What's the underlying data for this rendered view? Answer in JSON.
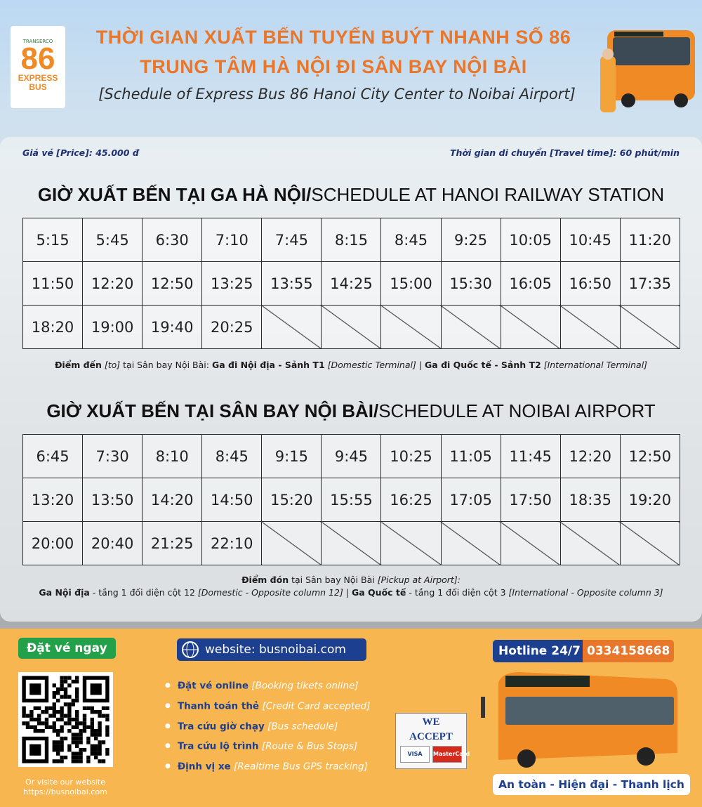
{
  "header": {
    "logo": {
      "brand": "TRANSERCO",
      "number": "86",
      "name_line1": "EXPRESS",
      "name_line2": "BUS"
    },
    "title_line1": "THỜI GIAN XUẤT BẾN TUYẾN BUÝT NHANH SỐ 86",
    "title_line2": "TRUNG TÂM HÀ NỘI ĐI SÂN BAY NỘI BÀI",
    "subtitle": "[Schedule of Express Bus 86 Hanoi City Center to Noibai Airport]"
  },
  "info": {
    "price": "Giá vé [Price]: 45.000 đ",
    "travel_time": "Thời gian di chuyển [Travel time]: 60 phút/min"
  },
  "schedules": [
    {
      "heading_vi": "GIỜ XUẤT BẾN TẠI GA HÀ NỘI/",
      "heading_en": "SCHEDULE AT HANOI RAILWAY STATION",
      "rows": [
        [
          "5:15",
          "5:45",
          "6:30",
          "7:10",
          "7:45",
          "8:15",
          "8:45",
          "9:25",
          "10:05",
          "10:45",
          "11:20"
        ],
        [
          "11:50",
          "12:20",
          "12:50",
          "13:25",
          "13:55",
          "14:25",
          "15:00",
          "15:30",
          "16:05",
          "16:50",
          "17:35"
        ],
        [
          "18:20",
          "19:00",
          "19:40",
          "20:25"
        ]
      ],
      "note": [
        [
          {
            "text": "Điểm đến",
            "style": "bold"
          },
          {
            "text": " [to]",
            "style": "italic"
          },
          {
            "text": " tại Sân bay Nội Bài: ",
            "style": "normal"
          },
          {
            "text": "Ga đi Nội địa - Sảnh T1",
            "style": "bold"
          },
          {
            "text": " [Domestic Terminal]",
            "style": "italic"
          },
          {
            "text": " | ",
            "style": "normal"
          },
          {
            "text": "Ga đi Quốc tế - Sảnh T2",
            "style": "bold"
          },
          {
            "text": " [International Terminal]",
            "style": "italic"
          }
        ]
      ]
    },
    {
      "heading_vi": "GIỜ XUẤT BẾN TẠI SÂN BAY NỘI BÀI/",
      "heading_en": "SCHEDULE AT NOIBAI AIRPORT",
      "rows": [
        [
          "6:45",
          "7:30",
          "8:10",
          "8:45",
          "9:15",
          "9:45",
          "10:25",
          "11:05",
          "11:45",
          "12:20",
          "12:50"
        ],
        [
          "13:20",
          "13:50",
          "14:20",
          "14:50",
          "15:20",
          "15:55",
          "16:25",
          "17:05",
          "17:50",
          "18:35",
          "19:20"
        ],
        [
          "20:00",
          "20:40",
          "21:25",
          "22:10"
        ]
      ],
      "note": [
        [
          {
            "text": "Điểm đón",
            "style": "bold"
          },
          {
            "text": " tại Sân bay Nội Bài ",
            "style": "normal"
          },
          {
            "text": "[Pickup at Airport]:",
            "style": "italic"
          }
        ],
        [
          {
            "text": "Ga Nội địa",
            "style": "bold"
          },
          {
            "text": " - tầng 1 đối diện cột 12 ",
            "style": "normal"
          },
          {
            "text": "[Domestic - Opposite column 12]",
            "style": "italic"
          },
          {
            "text": " | ",
            "style": "normal"
          },
          {
            "text": "Ga Quốc tế",
            "style": "bold"
          },
          {
            "text": " - tầng 1 đối diện cột 3 ",
            "style": "normal"
          },
          {
            "text": "[International - Opposite column 3]",
            "style": "italic"
          }
        ]
      ]
    }
  ],
  "footer": {
    "book_now": "Đặt vé ngay",
    "visit_text": "Or visite our website",
    "visit_url": "https://busnoibai.com",
    "website": "website: busnoibai.com",
    "features": [
      {
        "main": "Đặt vé online",
        "en": "[Booking tikets online]"
      },
      {
        "main": "Thanh toán thẻ",
        "en": "[Credit Card accepted]"
      },
      {
        "main": "Tra cứu giờ chạy",
        "en": "[Bus schedule]"
      },
      {
        "main": "Tra cứu lộ trình",
        "en": "[Route & Bus Stops]"
      },
      {
        "main": "Định vị xe",
        "en": "[Realtime Bus GPS tracking]"
      }
    ],
    "accept_line1": "WE",
    "accept_line2": "ACCEPT",
    "cards": [
      "VISA",
      "MasterCard"
    ],
    "hotline_label": "Hotline 24/7",
    "hotline_number": "0334158668",
    "slogan": "An toàn - Hiện đại - Thanh lịch"
  }
}
